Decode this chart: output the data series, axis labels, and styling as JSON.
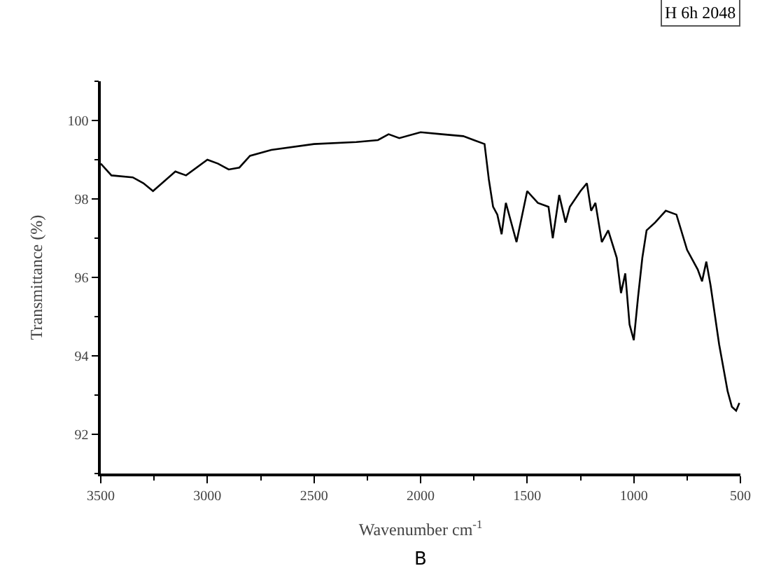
{
  "chart_data": {
    "type": "line",
    "xlabel": "Wavenumber cm$^{-1}$",
    "ylabel": "Transmittance (%)",
    "annotations": [
      "H 6h 2048",
      "B"
    ],
    "xlim": [
      3500,
      500
    ],
    "xticks": [
      3500,
      3000,
      2500,
      2000,
      1500,
      1000,
      500
    ],
    "ylim": [
      91,
      101
    ],
    "yticks": [
      92,
      94,
      96,
      98,
      100
    ],
    "marker": "none",
    "line_style": "solid",
    "x": [
      3500,
      3450,
      3350,
      3300,
      3255,
      3150,
      3100,
      3000,
      2950,
      2900,
      2850,
      2800,
      2700,
      2500,
      2300,
      2200,
      2150,
      2100,
      2000,
      1900,
      1800,
      1750,
      1700,
      1680,
      1660,
      1640,
      1620,
      1600,
      1580,
      1550,
      1500,
      1450,
      1400,
      1380,
      1350,
      1320,
      1300,
      1250,
      1220,
      1200,
      1180,
      1150,
      1120,
      1080,
      1060,
      1040,
      1020,
      1000,
      980,
      960,
      940,
      900,
      850,
      800,
      750,
      700,
      680,
      660,
      640,
      600,
      560,
      540,
      520,
      505
    ],
    "series": [
      {
        "color": "#000000",
        "values": [
          98.9,
          98.6,
          98.55,
          98.4,
          98.2,
          98.7,
          98.6,
          99.0,
          98.9,
          98.75,
          98.8,
          99.1,
          99.25,
          99.4,
          99.45,
          99.5,
          99.65,
          99.55,
          99.7,
          99.65,
          99.6,
          99.5,
          99.4,
          98.5,
          97.8,
          97.6,
          97.1,
          97.9,
          97.5,
          96.9,
          98.2,
          97.9,
          97.8,
          97.0,
          98.1,
          97.4,
          97.8,
          98.2,
          98.4,
          97.7,
          97.9,
          96.9,
          97.2,
          96.5,
          95.6,
          96.1,
          94.8,
          94.4,
          95.5,
          96.5,
          97.2,
          97.4,
          97.7,
          97.6,
          96.7,
          96.2,
          95.9,
          96.4,
          95.8,
          94.3,
          93.1,
          92.7,
          92.6,
          92.8
        ]
      }
    ]
  }
}
